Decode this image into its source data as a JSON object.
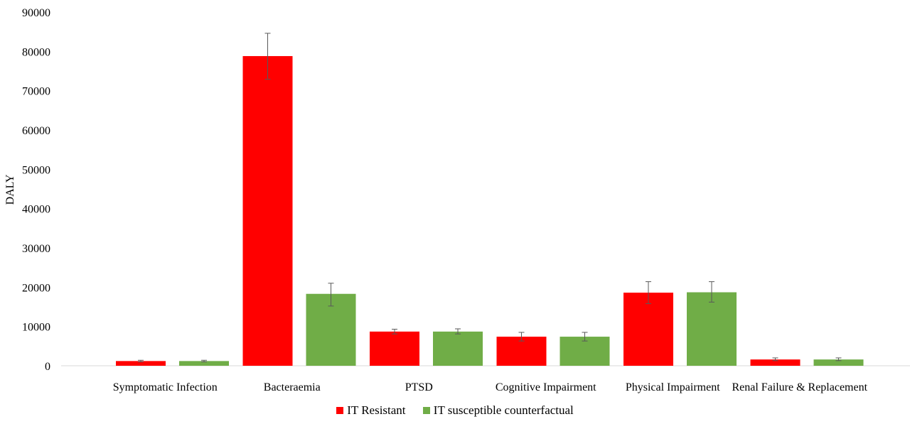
{
  "chart_data": {
    "type": "bar",
    "title": "",
    "xlabel": "",
    "ylabel": "DALY",
    "ylim": [
      0,
      90000
    ],
    "yticks": [
      "0",
      "10000",
      "20000",
      "30000",
      "40000",
      "50000",
      "60000",
      "70000",
      "80000",
      "90000"
    ],
    "grid": false,
    "legend_position": "bottom",
    "categories": [
      "Symptomatic Infection",
      "Bacteraemia",
      "PTSD",
      "Cognitive Impairment",
      "Physical Impairment",
      "Renal Failure & Replacement"
    ],
    "series": [
      {
        "name": "IT Resistant",
        "color": "#ff0000",
        "values": [
          1200,
          78800,
          8700,
          7400,
          18600,
          1600
        ],
        "error_low": [
          1000,
          72900,
          8100,
          6300,
          15800,
          1300
        ],
        "error_high": [
          1400,
          84600,
          9300,
          8500,
          21400,
          2000
        ]
      },
      {
        "name": "IT susceptible counterfactual",
        "color": "#70ad47",
        "values": [
          1200,
          18300,
          8700,
          7400,
          18700,
          1600
        ],
        "error_low": [
          1000,
          15200,
          8100,
          6300,
          16200,
          1300
        ],
        "error_high": [
          1400,
          21000,
          9400,
          8500,
          21400,
          2000
        ]
      }
    ]
  }
}
